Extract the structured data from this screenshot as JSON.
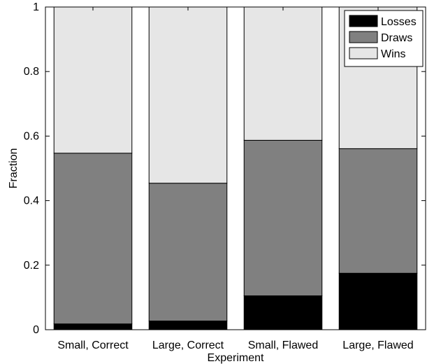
{
  "chart_data": {
    "type": "bar",
    "stacked": true,
    "categories": [
      "Small, Correct",
      "Large, Correct",
      "Small, Flawed",
      "Large, Flawed"
    ],
    "series": [
      {
        "name": "Losses",
        "color": "#000000",
        "values": [
          0.018,
          0.027,
          0.105,
          0.175
        ]
      },
      {
        "name": "Draws",
        "color": "#808080",
        "values": [
          0.529,
          0.427,
          0.482,
          0.386
        ]
      },
      {
        "name": "Wins",
        "color": "#e6e6e6",
        "values": [
          0.453,
          0.546,
          0.413,
          0.439
        ]
      }
    ],
    "xlabel": "Experiment",
    "ylabel": "Fraction",
    "ylim": [
      0,
      1
    ],
    "yticks": [
      "0",
      "0.2",
      "0.4",
      "0.6",
      "0.8",
      "1"
    ],
    "legend_position": "top-right",
    "grid": false
  }
}
